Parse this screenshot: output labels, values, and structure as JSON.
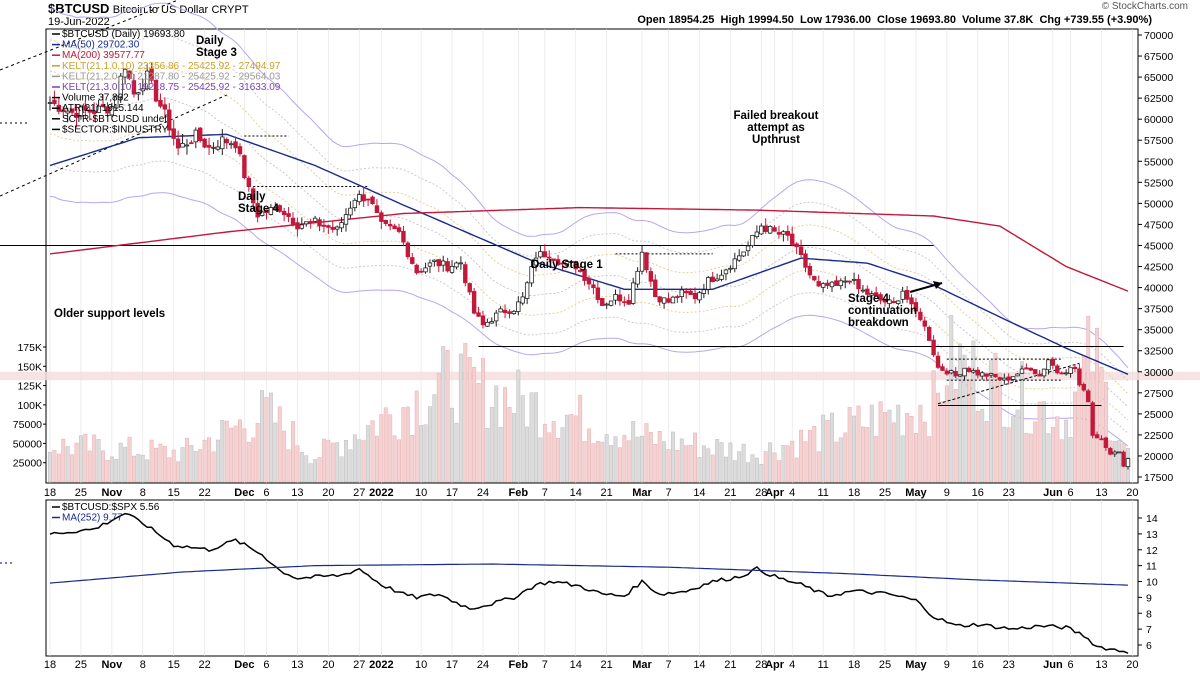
{
  "header": {
    "ticker": "$BTCUSD",
    "name": "Bitcoin to US Dollar",
    "exchange": "CRYPT",
    "date": "19-Jun-2022",
    "ohlc": "Open 18954.25  High 19994.50  Low 17936.00  Close 19693.80  Volume 37.8K  Chg +739.55 (+3.90%)",
    "watermark": "© StockCharts.com"
  },
  "legend_top": [
    {
      "text": "$BTCUSD (Daily) 19693.80",
      "color": "#000000"
    },
    {
      "text": "MA(50) 29702.30",
      "color": "#1a2a8a"
    },
    {
      "text": "MA(200) 39577.77",
      "color": "#c2183a"
    },
    {
      "text": "KELT(21,1.0,10) 23356.86 - 25425.92 - 27494.97",
      "color": "#c9a227"
    },
    {
      "text": "KELT(21,2.0,10) 21287.80 - 25425.92 - 29564.03",
      "color": "#999999"
    },
    {
      "text": "KELT(21,3.0,10) 19218.75 - 25425.92 - 31633.09",
      "color": "#7b3fb5"
    },
    {
      "text": "Volume 37,832",
      "color": "#000000"
    },
    {
      "text": "ATR(21) 1915.144",
      "color": "#000000"
    },
    {
      "text": "SCTR-$BTCUSD undef",
      "color": "#000000"
    },
    {
      "text": "$SECTOR:$INDUSTRY",
      "color": "#000000"
    }
  ],
  "legend_bottom": [
    {
      "text": "$BTCUSD:$SPX 5.56",
      "color": "#000000"
    },
    {
      "text": "MA(252) 9.77",
      "color": "#1a2a8a"
    }
  ],
  "annotations": [
    {
      "text": "Daily Stage 3",
      "lines": [
        "Daily",
        "Stage 3"
      ]
    },
    {
      "text": "Daily Stage 4",
      "lines": [
        "Daily",
        "Stage 4"
      ]
    },
    {
      "text": "Daily Stage 1",
      "lines": [
        "Daily Stage 1"
      ]
    },
    {
      "text": "Failed breakout attempt as Upthrust",
      "lines": [
        "Failed breakout",
        "attempt as",
        "Upthrust"
      ]
    },
    {
      "text": "Stage 4 continuation breakdown",
      "lines": [
        "Stage 4",
        "continuation",
        "breakdown"
      ]
    },
    {
      "text": "Older support levels",
      "lines": [
        "Older support levels"
      ]
    }
  ],
  "x_labels": [
    {
      "label": "18",
      "i": 0,
      "bold": false
    },
    {
      "label": "25",
      "i": 7,
      "bold": false
    },
    {
      "label": "Nov",
      "i": 14,
      "bold": true
    },
    {
      "label": "8",
      "i": 21,
      "bold": false
    },
    {
      "label": "15",
      "i": 28,
      "bold": false
    },
    {
      "label": "22",
      "i": 35,
      "bold": false
    },
    {
      "label": "Dec",
      "i": 44,
      "bold": true
    },
    {
      "label": "6",
      "i": 49,
      "bold": false
    },
    {
      "label": "13",
      "i": 56,
      "bold": false
    },
    {
      "label": "20",
      "i": 63,
      "bold": false
    },
    {
      "label": "27",
      "i": 70,
      "bold": false
    },
    {
      "label": "2022",
      "i": 75,
      "bold": true
    },
    {
      "label": "10",
      "i": 84,
      "bold": false
    },
    {
      "label": "17",
      "i": 91,
      "bold": false
    },
    {
      "label": "24",
      "i": 98,
      "bold": false
    },
    {
      "label": "Feb",
      "i": 106,
      "bold": true
    },
    {
      "label": "7",
      "i": 112,
      "bold": false
    },
    {
      "label": "14",
      "i": 119,
      "bold": false
    },
    {
      "label": "21",
      "i": 126,
      "bold": false
    },
    {
      "label": "Mar",
      "i": 134,
      "bold": true
    },
    {
      "label": "7",
      "i": 140,
      "bold": false
    },
    {
      "label": "14",
      "i": 147,
      "bold": false
    },
    {
      "label": "21",
      "i": 154,
      "bold": false
    },
    {
      "label": "28",
      "i": 161,
      "bold": false
    },
    {
      "label": "Apr",
      "i": 164,
      "bold": true
    },
    {
      "label": "4",
      "i": 168,
      "bold": false
    },
    {
      "label": "11",
      "i": 175,
      "bold": false
    },
    {
      "label": "18",
      "i": 182,
      "bold": false
    },
    {
      "label": "25",
      "i": 189,
      "bold": false
    },
    {
      "label": "May",
      "i": 196,
      "bold": true
    },
    {
      "label": "9",
      "i": 203,
      "bold": false
    },
    {
      "label": "16",
      "i": 210,
      "bold": false
    },
    {
      "label": "23",
      "i": 217,
      "bold": false
    },
    {
      "label": "Jun",
      "i": 227,
      "bold": true
    },
    {
      "label": "6",
      "i": 231,
      "bold": false
    },
    {
      "label": "13",
      "i": 238,
      "bold": false
    },
    {
      "label": "20",
      "i": 245,
      "bold": false
    }
  ],
  "chart_data": [
    {
      "type": "candlestick",
      "title": "$BTCUSD Bitcoin to US Dollar CRYPT",
      "period": "Daily",
      "date_range": [
        "2021-10-18",
        "2022-06-19"
      ],
      "bars": 245,
      "price_ticks": [
        17500,
        20000,
        22500,
        25000,
        27500,
        30000,
        32500,
        35000,
        37500,
        40000,
        42500,
        45000,
        47500,
        50000,
        52500,
        55000,
        57500,
        60000,
        62500,
        65000,
        67500,
        70000
      ],
      "volume_ticks": [
        25000,
        50000,
        75000,
        100000,
        125000,
        150000,
        175000
      ],
      "volume_tick_labels": [
        "25000",
        "50000",
        "75000",
        "100K",
        "125K",
        "150K",
        "175K"
      ],
      "ylim": [
        16500,
        71000
      ],
      "close_anchors": [
        [
          0,
          62000
        ],
        [
          5,
          60800
        ],
        [
          10,
          61000
        ],
        [
          14,
          61500
        ],
        [
          17,
          66500
        ],
        [
          19,
          63000
        ],
        [
          22,
          65000
        ],
        [
          26,
          60500
        ],
        [
          29,
          56500
        ],
        [
          33,
          58000
        ],
        [
          36,
          56600
        ],
        [
          39,
          57500
        ],
        [
          42,
          57200
        ],
        [
          45,
          51500
        ],
        [
          47,
          48700
        ],
        [
          52,
          49500
        ],
        [
          56,
          47500
        ],
        [
          60,
          47700
        ],
        [
          65,
          46800
        ],
        [
          69,
          50700
        ],
        [
          72,
          50800
        ],
        [
          75,
          47300
        ],
        [
          79,
          46500
        ],
        [
          83,
          41900
        ],
        [
          87,
          43000
        ],
        [
          90,
          42500
        ],
        [
          93,
          43000
        ],
        [
          96,
          37000
        ],
        [
          98,
          35500
        ],
        [
          102,
          37100
        ],
        [
          105,
          37500
        ],
        [
          107,
          38700
        ],
        [
          110,
          43800
        ],
        [
          113,
          44100
        ],
        [
          116,
          42800
        ],
        [
          119,
          42600
        ],
        [
          123,
          40000
        ],
        [
          125,
          38000
        ],
        [
          128,
          38900
        ],
        [
          131,
          38500
        ],
        [
          134,
          44300
        ],
        [
          137,
          39000
        ],
        [
          140,
          38300
        ],
        [
          143,
          39300
        ],
        [
          146,
          38900
        ],
        [
          149,
          40800
        ],
        [
          152,
          41800
        ],
        [
          155,
          43300
        ],
        [
          158,
          44900
        ],
        [
          161,
          47400
        ],
        [
          164,
          46500
        ],
        [
          167,
          46000
        ],
        [
          170,
          43500
        ],
        [
          172,
          41500
        ],
        [
          174,
          39900
        ],
        [
          176,
          40200
        ],
        [
          178,
          40100
        ],
        [
          181,
          41200
        ],
        [
          183,
          39800
        ],
        [
          185,
          39300
        ],
        [
          188,
          38500
        ],
        [
          191,
          38000
        ],
        [
          193,
          39700
        ],
        [
          195,
          37600
        ],
        [
          197,
          36500
        ],
        [
          199,
          34000
        ],
        [
          201,
          30500
        ],
        [
          203,
          30100
        ],
        [
          205,
          29500
        ],
        [
          207,
          30500
        ],
        [
          210,
          29800
        ],
        [
          213,
          29500
        ],
        [
          216,
          29000
        ],
        [
          219,
          29800
        ],
        [
          222,
          30500
        ],
        [
          224,
          29500
        ],
        [
          226,
          31500
        ],
        [
          228,
          30000
        ],
        [
          230,
          30200
        ],
        [
          232,
          30400
        ],
        [
          233,
          28400
        ],
        [
          235,
          26700
        ],
        [
          236,
          22500
        ],
        [
          238,
          22100
        ],
        [
          240,
          20400
        ],
        [
          242,
          20300
        ],
        [
          243,
          19000
        ],
        [
          244,
          19693.8
        ]
      ],
      "volume_anchors": [
        [
          0,
          50000
        ],
        [
          30,
          40000
        ],
        [
          49,
          95000
        ],
        [
          60,
          35000
        ],
        [
          91,
          140000
        ],
        [
          98,
          125000
        ],
        [
          135,
          60000
        ],
        [
          160,
          40000
        ],
        [
          201,
          110000
        ],
        [
          203,
          168000
        ],
        [
          230,
          85000
        ],
        [
          236,
          180000
        ],
        [
          240,
          95000
        ],
        [
          244,
          37832
        ]
      ],
      "series": [
        {
          "name": "MA(50)",
          "last": 29702.3,
          "anchors": [
            [
              0,
              54500
            ],
            [
              20,
              57800
            ],
            [
              40,
              58200
            ],
            [
              60,
              54500
            ],
            [
              80,
              49800
            ],
            [
              110,
              43000
            ],
            [
              130,
              39800
            ],
            [
              150,
              39800
            ],
            [
              170,
              43500
            ],
            [
              185,
              42900
            ],
            [
              200,
              40300
            ],
            [
              215,
              36500
            ],
            [
              230,
              32800
            ],
            [
              244,
              29702.3
            ]
          ]
        },
        {
          "name": "MA(200)",
          "last": 39577.77,
          "anchors": [
            [
              0,
              44000
            ],
            [
              40,
              46600
            ],
            [
              80,
              48800
            ],
            [
              120,
              49500
            ],
            [
              160,
              49200
            ],
            [
              200,
              48500
            ],
            [
              215,
              47300
            ],
            [
              230,
              42500
            ],
            [
              244,
              39577.77
            ]
          ]
        }
      ],
      "horizontal_levels": [
        45000,
        33000,
        26000
      ],
      "support_zone": [
        29000,
        30000
      ]
    },
    {
      "type": "line",
      "title": "$BTCUSD:$SPX",
      "ylim": [
        5,
        15
      ],
      "y_ticks": [
        6,
        7,
        8,
        9,
        10,
        11,
        12,
        13,
        14
      ],
      "series": [
        {
          "name": "$BTCUSD:$SPX",
          "last": 5.56,
          "anchors": [
            [
              0,
              13.0
            ],
            [
              10,
              13.3
            ],
            [
              17,
              14.3
            ],
            [
              22,
              13.5
            ],
            [
              28,
              12.3
            ],
            [
              36,
              12.0
            ],
            [
              42,
              12.6
            ],
            [
              48,
              11.7
            ],
            [
              52,
              10.7
            ],
            [
              56,
              10.2
            ],
            [
              61,
              10.3
            ],
            [
              66,
              10.4
            ],
            [
              70,
              10.8
            ],
            [
              75,
              9.8
            ],
            [
              80,
              9.2
            ],
            [
              83,
              9.0
            ],
            [
              88,
              9.2
            ],
            [
              91,
              8.8
            ],
            [
              95,
              8.3
            ],
            [
              100,
              8.6
            ],
            [
              105,
              9.0
            ],
            [
              110,
              9.8
            ],
            [
              114,
              10.0
            ],
            [
              120,
              9.7
            ],
            [
              125,
              9.2
            ],
            [
              130,
              9.1
            ],
            [
              134,
              10.0
            ],
            [
              138,
              9.2
            ],
            [
              144,
              9.4
            ],
            [
              150,
              10.0
            ],
            [
              156,
              10.3
            ],
            [
              160,
              10.8
            ],
            [
              165,
              10.2
            ],
            [
              170,
              9.8
            ],
            [
              176,
              9.1
            ],
            [
              182,
              9.4
            ],
            [
              190,
              9.2
            ],
            [
              196,
              8.8
            ],
            [
              200,
              7.8
            ],
            [
              205,
              7.2
            ],
            [
              210,
              7.3
            ],
            [
              218,
              7.0
            ],
            [
              224,
              7.2
            ],
            [
              230,
              7.1
            ],
            [
              234,
              6.6
            ],
            [
              237,
              5.9
            ],
            [
              241,
              5.7
            ],
            [
              244,
              5.56
            ]
          ]
        },
        {
          "name": "MA(252)",
          "last": 9.77,
          "anchors": [
            [
              0,
              9.9
            ],
            [
              30,
              10.6
            ],
            [
              60,
              11.0
            ],
            [
              100,
              11.1
            ],
            [
              140,
              10.9
            ],
            [
              180,
              10.5
            ],
            [
              210,
              10.1
            ],
            [
              244,
              9.77
            ]
          ]
        }
      ]
    }
  ]
}
